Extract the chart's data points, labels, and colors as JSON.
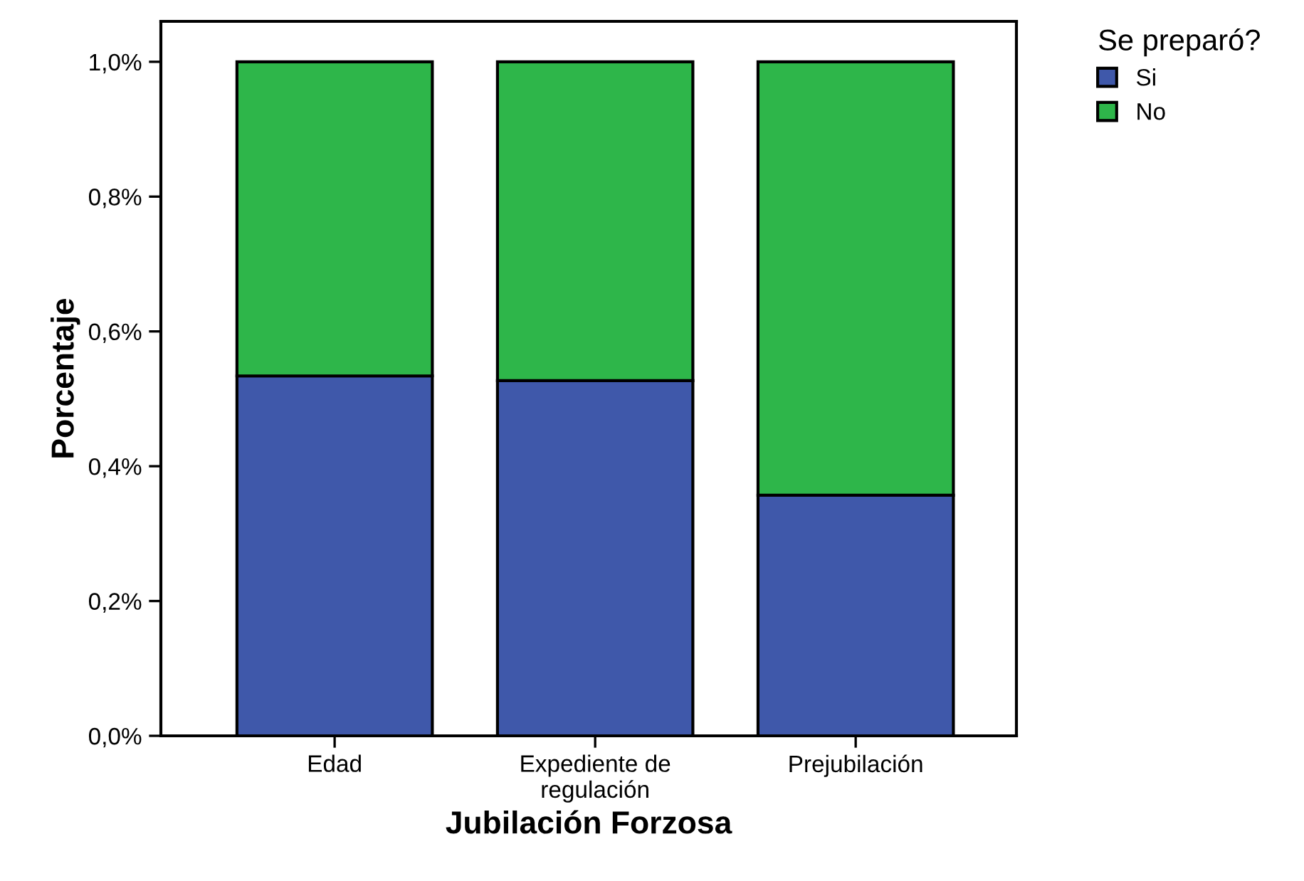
{
  "chart_data": {
    "type": "bar",
    "stacked": true,
    "xlabel": "Jubilación Forzosa",
    "ylabel": "Porcentaje",
    "legend_title": "Se preparó?",
    "legend": "top right",
    "categories": [
      "Edad",
      "Expediente de\nregulación",
      "Prejubilación"
    ],
    "series": [
      {
        "name": "Si",
        "color": "#3f58aa",
        "values": [
          0.534,
          0.527,
          0.357
        ]
      },
      {
        "name": "No",
        "color": "#2eb64a",
        "values": [
          0.466,
          0.473,
          0.643
        ]
      }
    ],
    "ylim": [
      0,
      1.06
    ],
    "yticks": [
      {
        "value": 0,
        "label": "0,0%"
      },
      {
        "value": 0.2,
        "label": "0,2%"
      },
      {
        "value": 0.4,
        "label": "0,4%"
      },
      {
        "value": 0.6,
        "label": "0,6%"
      },
      {
        "value": 0.8,
        "label": "0,8%"
      },
      {
        "value": 1.0,
        "label": "1,0%"
      }
    ],
    "grid": false
  }
}
